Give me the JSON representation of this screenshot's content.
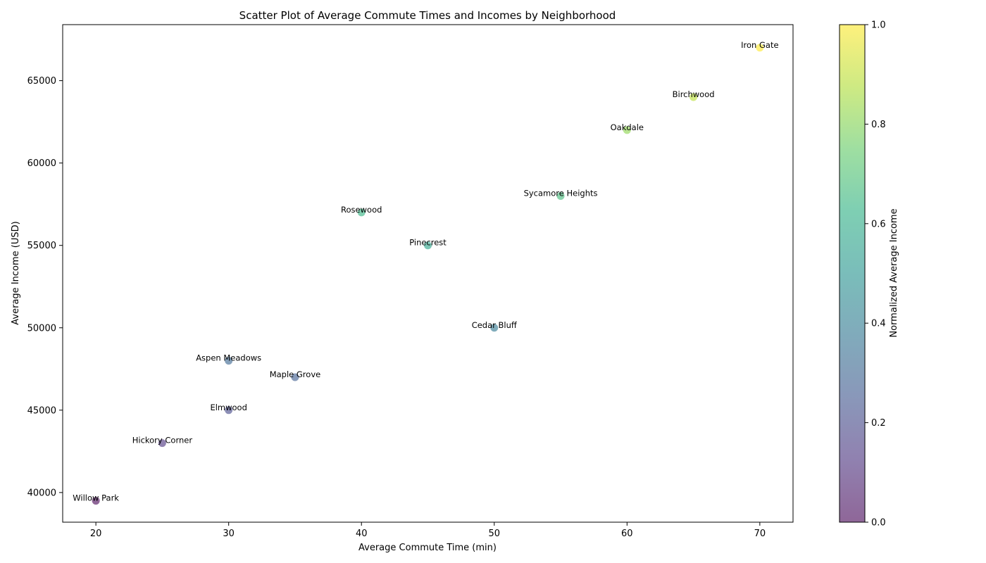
{
  "chart_data": {
    "type": "scatter",
    "title": "Scatter Plot of Average Commute Times and Incomes by Neighborhood",
    "xlabel": "Average Commute Time (min)",
    "ylabel": "Average Income (USD)",
    "xlim": [
      17.5,
      72.5
    ],
    "ylim": [
      38200,
      68400
    ],
    "xticks": [
      20,
      30,
      40,
      50,
      60,
      70
    ],
    "yticks": [
      40000,
      45000,
      50000,
      55000,
      60000,
      65000
    ],
    "grid": false,
    "points": [
      {
        "label": "Willow Park",
        "x": 20,
        "y": 39500
      },
      {
        "label": "Hickory Corner",
        "x": 25,
        "y": 43000
      },
      {
        "label": "Elmwood",
        "x": 30,
        "y": 45000
      },
      {
        "label": "Aspen Meadows",
        "x": 30,
        "y": 48000
      },
      {
        "label": "Maple Grove",
        "x": 35,
        "y": 47000
      },
      {
        "label": "Rosewood",
        "x": 40,
        "y": 57000
      },
      {
        "label": "Pinecrest",
        "x": 45,
        "y": 55000
      },
      {
        "label": "Cedar Bluff",
        "x": 50,
        "y": 50000
      },
      {
        "label": "Sycamore Heights",
        "x": 55,
        "y": 58000
      },
      {
        "label": "Oakdale",
        "x": 60,
        "y": 62000
      },
      {
        "label": "Birchwood",
        "x": 65,
        "y": 64000
      },
      {
        "label": "Iron Gate",
        "x": 70,
        "y": 67000
      }
    ],
    "colorbar": {
      "label": "Normalized Average Income",
      "colormap": "viridis",
      "range": [
        0,
        1
      ],
      "ticks": [
        0.0,
        0.2,
        0.4,
        0.6,
        0.8,
        1.0
      ],
      "tick_labels": [
        "0.0",
        "0.2",
        "0.4",
        "0.6",
        "0.8",
        "1.0"
      ]
    },
    "marker_alpha": 0.6
  }
}
